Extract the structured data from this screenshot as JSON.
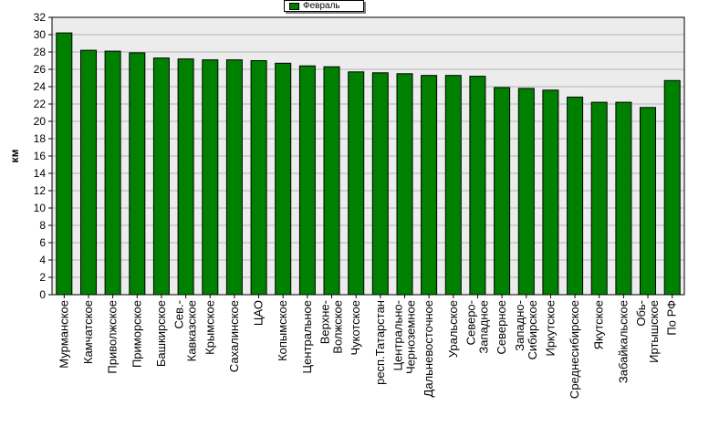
{
  "chart_data": {
    "type": "bar",
    "title": "",
    "xlabel": "",
    "ylabel": "км",
    "ylim": [
      0,
      32
    ],
    "ytick_step": 2,
    "grid": true,
    "legend_position": "top-center",
    "colors": {
      "bar": "#008000",
      "plot_background": "#ececec",
      "grid": "#b4b4b4"
    },
    "categories": [
      "Мурманское",
      "Камчатское",
      "Приволжское",
      "Приморское",
      "Башкирское",
      "Сев.-Кавказское",
      "Крымское",
      "Сахалинское",
      "ЦАО",
      "Копымское",
      "Центральное",
      "Верхне-Волжское",
      "Чукотское",
      "респ.Татарстан",
      "Центрально-Черноземное",
      "Дальневосточное",
      "Уральское",
      "Северо-Западное",
      "Северное",
      "Западно-Сибирское",
      "Иркутское",
      "Среднесибирское",
      "Якутское",
      "Забайкальское",
      "Обь-Иртышское",
      "По РФ"
    ],
    "category_lines": [
      [
        "Мурманское"
      ],
      [
        "Камчатское"
      ],
      [
        "Приволжское"
      ],
      [
        "Приморское"
      ],
      [
        "Башкирское"
      ],
      [
        "Сев.-",
        "Кавказское"
      ],
      [
        "Крымское"
      ],
      [
        "Сахалинское"
      ],
      [
        "ЦАО"
      ],
      [
        "Копымское"
      ],
      [
        "Центральное"
      ],
      [
        "Верхне-",
        "Волжское"
      ],
      [
        "Чукотское"
      ],
      [
        "респ.Татарстан"
      ],
      [
        "Центрально-",
        "Черноземное"
      ],
      [
        "Дальневосточное"
      ],
      [
        "Уральское"
      ],
      [
        "Северо-",
        "Западное"
      ],
      [
        "Северное"
      ],
      [
        "Западно-",
        "Сибирское"
      ],
      [
        "Иркутское"
      ],
      [
        "Среднесибирское"
      ],
      [
        "Якутское"
      ],
      [
        "Забайкальское"
      ],
      [
        "Обь-",
        "Иртышское"
      ],
      [
        "По РФ"
      ]
    ],
    "series": [
      {
        "name": "Февраль",
        "values": [
          30.2,
          28.2,
          28.1,
          27.9,
          27.3,
          27.2,
          27.1,
          27.1,
          27.0,
          26.7,
          26.4,
          26.3,
          25.7,
          25.6,
          25.5,
          25.3,
          25.3,
          25.2,
          23.9,
          23.8,
          23.6,
          22.8,
          22.2,
          22.2,
          21.6,
          24.7
        ]
      }
    ]
  }
}
